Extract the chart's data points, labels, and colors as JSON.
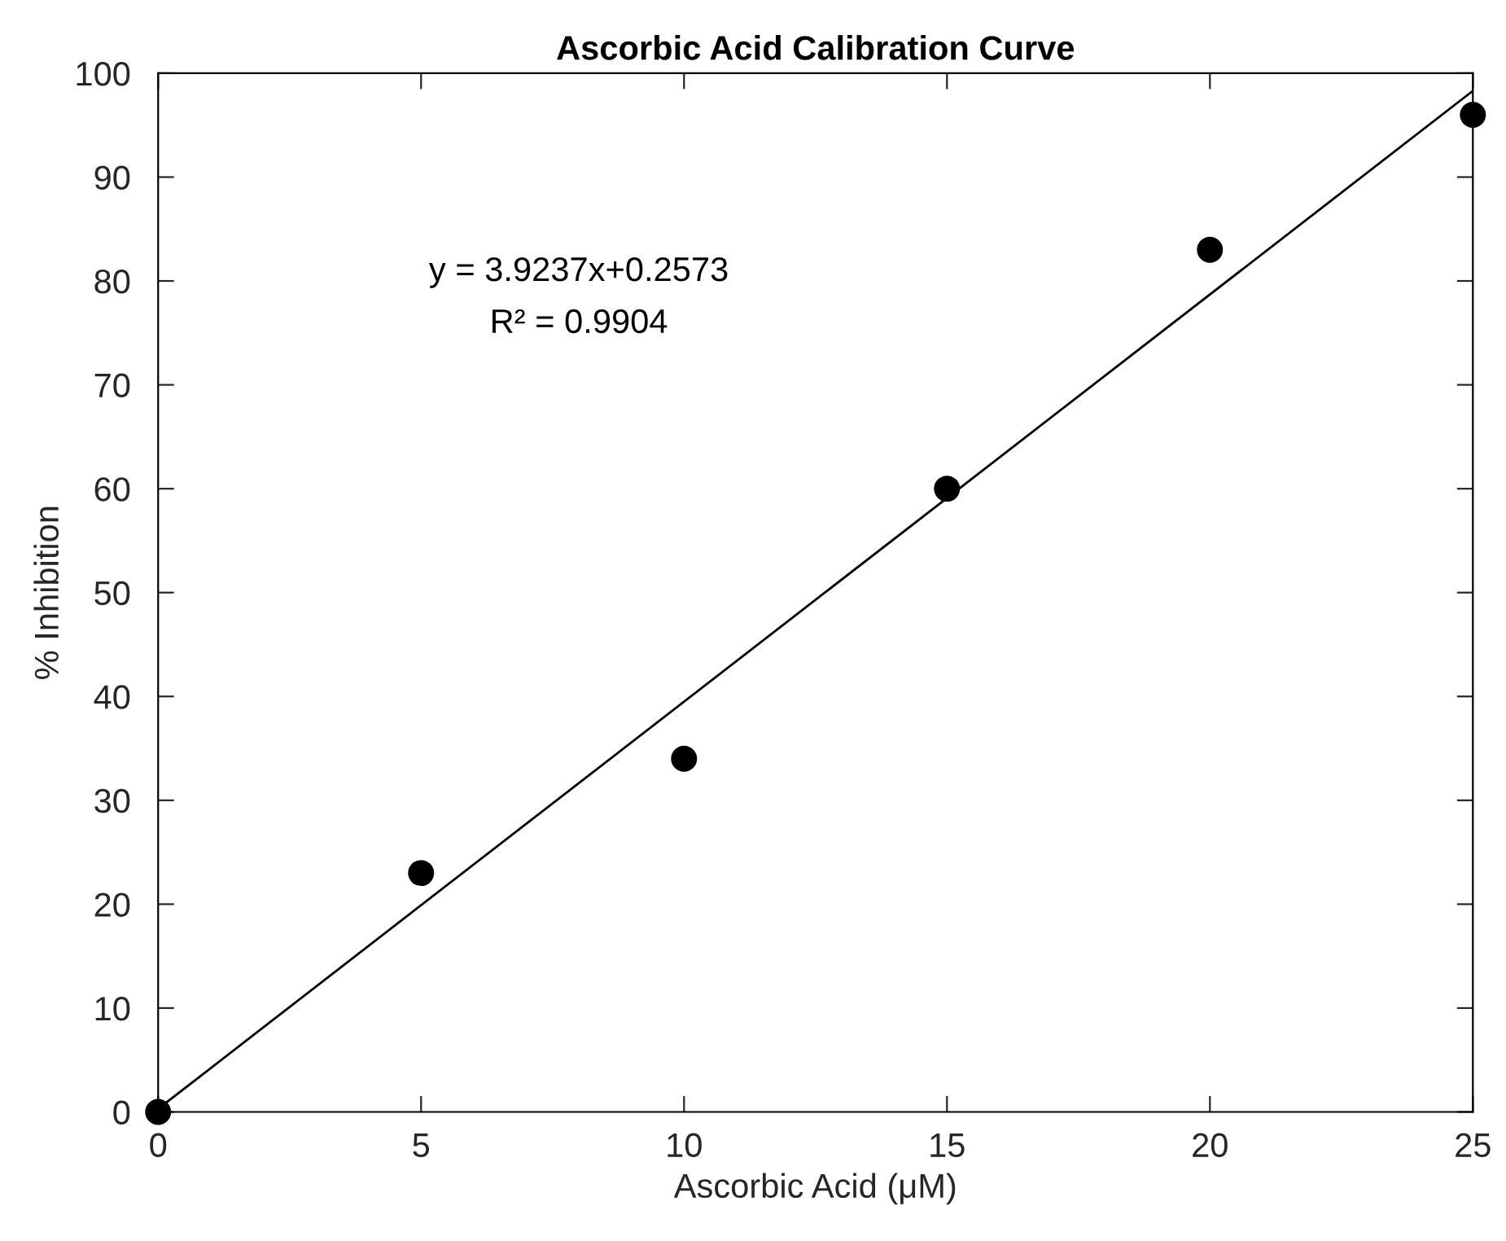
{
  "chart_data": {
    "type": "scatter",
    "title": "Ascorbic Acid Calibration Curve",
    "xlabel": "Ascorbic Acid (μM)",
    "ylabel": "% Inhibition",
    "xlim": [
      0,
      25
    ],
    "ylim": [
      0,
      100
    ],
    "xticks": [
      0,
      5,
      10,
      15,
      20,
      25
    ],
    "yticks": [
      0,
      10,
      20,
      30,
      40,
      50,
      60,
      70,
      80,
      90,
      100
    ],
    "grid": false,
    "legend": false,
    "marker": "circle",
    "series": [
      {
        "color": "#000000",
        "x": [
          0,
          5,
          10,
          15,
          20,
          25
        ],
        "values": [
          0,
          23,
          34,
          60,
          83,
          96
        ]
      },
      {
        "type": "line",
        "color": "#000000",
        "x": [
          0,
          25
        ],
        "values": [
          0.3,
          98.3
        ],
        "line_style": "solid",
        "marker": "none"
      }
    ],
    "annotations": [
      "y = 3.9237x+0.2573",
      "R² = 0.9904"
    ]
  }
}
